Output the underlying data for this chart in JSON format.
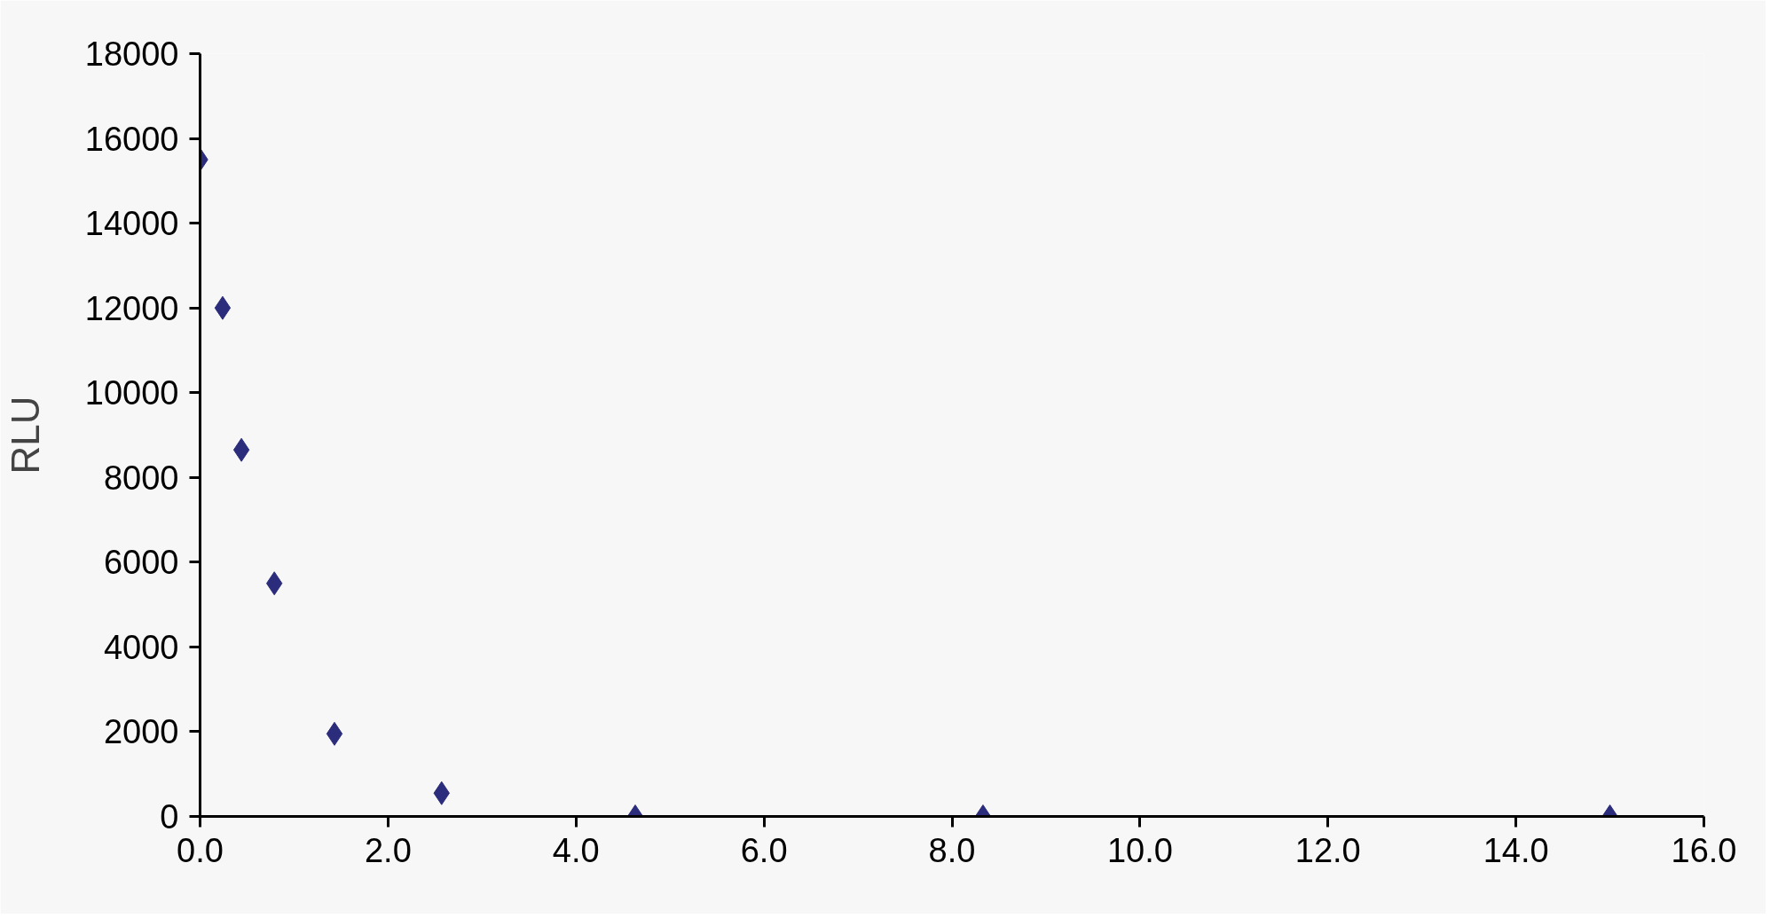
{
  "chart_data": {
    "type": "scatter",
    "ylabel": "RLU",
    "x": [
      0,
      0.24,
      0.44,
      0.79,
      1.43,
      2.57,
      4.63,
      8.33,
      15.0
    ],
    "series": [
      {
        "color": "#2b2c7c",
        "values": [
          15500,
          12000,
          8650,
          5500,
          1950,
          550,
          0,
          0,
          0
        ]
      }
    ],
    "marker": "diamond",
    "grid": false,
    "xlim": [
      0,
      16
    ],
    "ylim": [
      0,
      18000
    ],
    "xticks": [
      {
        "value": 0,
        "label": "0.0"
      },
      {
        "value": 2,
        "label": "2.0"
      },
      {
        "value": 4,
        "label": "4.0"
      },
      {
        "value": 6,
        "label": "6.0"
      },
      {
        "value": 8,
        "label": "8.0"
      },
      {
        "value": 10,
        "label": "10.0"
      },
      {
        "value": 12,
        "label": "12.0"
      },
      {
        "value": 14,
        "label": "14.0"
      },
      {
        "value": 16,
        "label": "16.0"
      }
    ],
    "yticks": [
      0,
      2000,
      4000,
      6000,
      8000,
      10000,
      12000,
      14000,
      16000,
      18000
    ]
  }
}
